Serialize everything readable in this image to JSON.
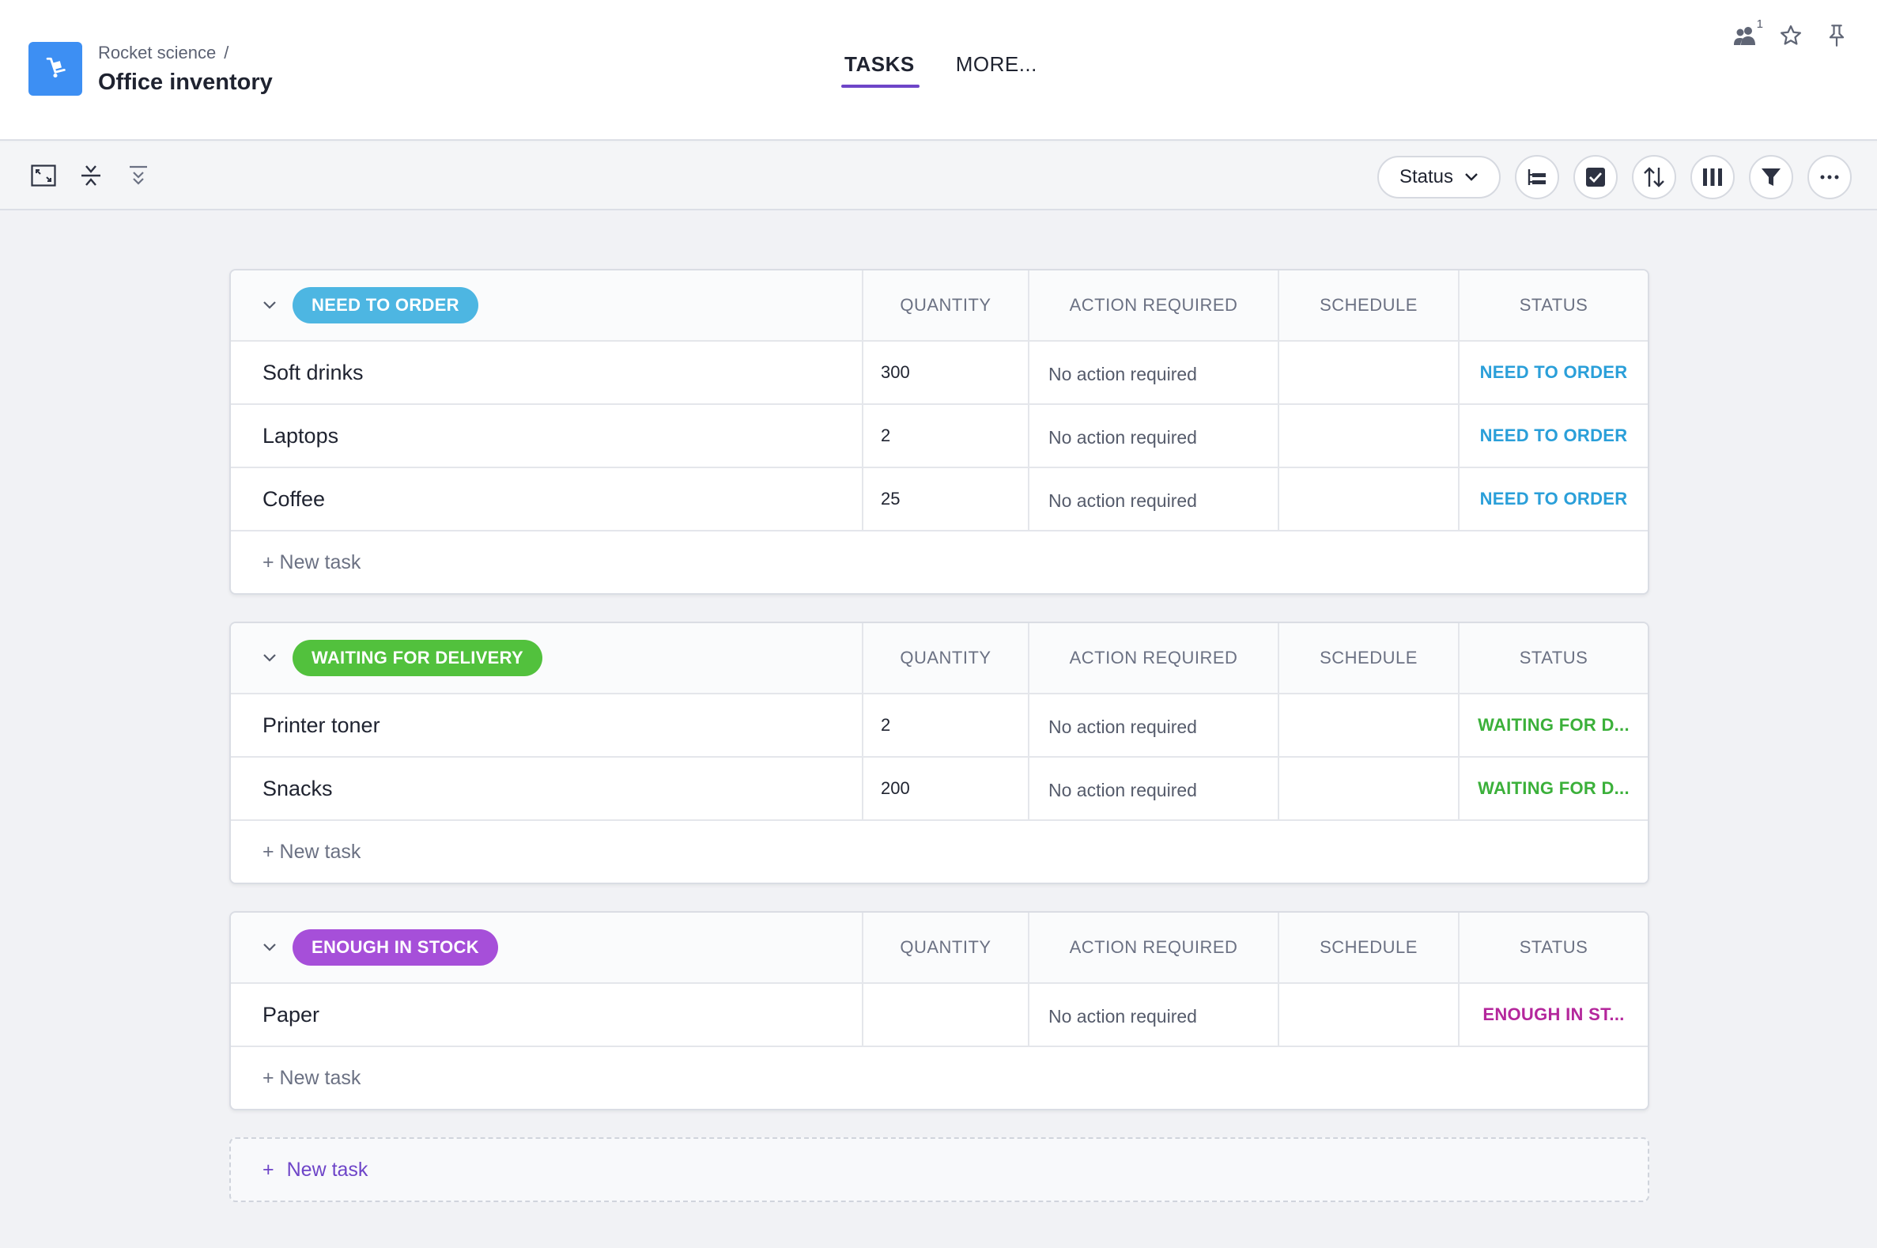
{
  "project": {
    "breadcrumb": "Rocket science",
    "breadcrumb_sep": "/",
    "title": "Office inventory"
  },
  "nav": {
    "tabs": [
      {
        "label": "TASKS"
      },
      {
        "label": "MORE..."
      }
    ]
  },
  "top_actions": {
    "members_count": "1"
  },
  "toolbar": {
    "group_by_label": "Status"
  },
  "columns": {
    "quantity": "QUANTITY",
    "action": "ACTION REQUIRED",
    "schedule": "SCHEDULE",
    "status": "STATUS"
  },
  "groups": [
    {
      "label": "NEED TO ORDER",
      "color": "#4db6e2",
      "status_color": "#2a9fd9",
      "tasks": [
        {
          "name": "Soft drinks",
          "quantity": "300",
          "action": "No action required",
          "schedule": "",
          "status": "NEED TO ORDER"
        },
        {
          "name": "Laptops",
          "quantity": "2",
          "action": "No action required",
          "schedule": "",
          "status": "NEED TO ORDER"
        },
        {
          "name": "Coffee",
          "quantity": "25",
          "action": "No action required",
          "schedule": "",
          "status": "NEED TO ORDER"
        }
      ],
      "new_task": "+ New task"
    },
    {
      "label": "WAITING FOR DELIVERY",
      "color": "#52c13d",
      "status_color": "#3bb03a",
      "tasks": [
        {
          "name": "Printer toner",
          "quantity": "2",
          "action": "No action required",
          "schedule": "",
          "status": "WAITING FOR D..."
        },
        {
          "name": "Snacks",
          "quantity": "200",
          "action": "No action required",
          "schedule": "",
          "status": "WAITING FOR D..."
        }
      ],
      "new_task": "+ New task"
    },
    {
      "label": "ENOUGH IN STOCK",
      "color": "#a64fd9",
      "status_color": "#b4279c",
      "tasks": [
        {
          "name": "Paper",
          "quantity": "",
          "action": "No action required",
          "schedule": "",
          "status": "ENOUGH IN ST..."
        }
      ],
      "new_task": "+ New task"
    }
  ],
  "add_group": {
    "plus": "+",
    "label": "New task"
  }
}
